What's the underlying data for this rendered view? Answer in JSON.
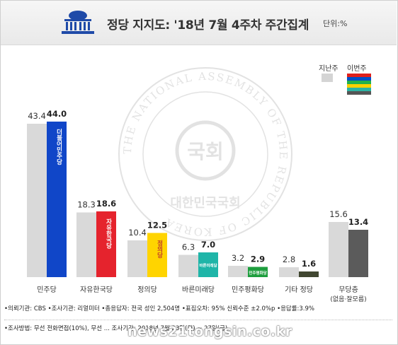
{
  "header": {
    "title": "정당 지지도: '18년 7월 4주차 주간집계",
    "unit": "단위:%"
  },
  "legend": {
    "last_week": "지난주",
    "this_week": "이번주",
    "stripe_colors": [
      "#e0201b",
      "#0050c8",
      "#22b14c",
      "#ffd000",
      "#2bb3a3",
      "#555555"
    ]
  },
  "chart_data": {
    "type": "bar",
    "categories": [
      "민주당",
      "자유한국당",
      "정의당",
      "바른미래당",
      "민주평화당",
      "기타 정당",
      "무당층"
    ],
    "category_sublabels": [
      "",
      "",
      "",
      "",
      "",
      "",
      "(없음·잘모름)"
    ],
    "series": [
      {
        "name": "지난주",
        "values": [
          43.4,
          18.3,
          10.4,
          6.3,
          3.2,
          2.8,
          15.6
        ],
        "color": "#d9d9d9"
      },
      {
        "name": "이번주",
        "values": [
          44.0,
          18.6,
          12.5,
          7.0,
          2.9,
          1.6,
          13.4
        ],
        "colors": [
          "#1046c8",
          "#e5232d",
          "#ffd400",
          "#1fb5a8",
          "#1e9e3e",
          "#414731",
          "#5b5b5b"
        ]
      }
    ],
    "ylim": [
      0,
      50
    ],
    "party_logos": [
      "더불어민주당",
      "자유한국당",
      "정의당",
      "바른미래당",
      "민주평화당",
      "",
      ""
    ]
  },
  "footer": {
    "line1": "•의뢰기관: CBS •조사기관: 리얼미터 •총응답자: 전국 성인 2,504명 •표집오차: 95% 신뢰수준 ±2.0%p •응답률:3.9%",
    "line2": "•조사방법: 무선 전화면접(10%), 무선 ... 조사기간: 2018년 7월 23일(월) ~ 27일(금)"
  },
  "watermark": {
    "ring_text": "THE NATIONAL ASSEMBLY OF THE REPUBLIC OF KOREA",
    "center_text": "국회",
    "bottom_text": "대한민국국회"
  },
  "news_mark": "news21tongsin.co.kr"
}
